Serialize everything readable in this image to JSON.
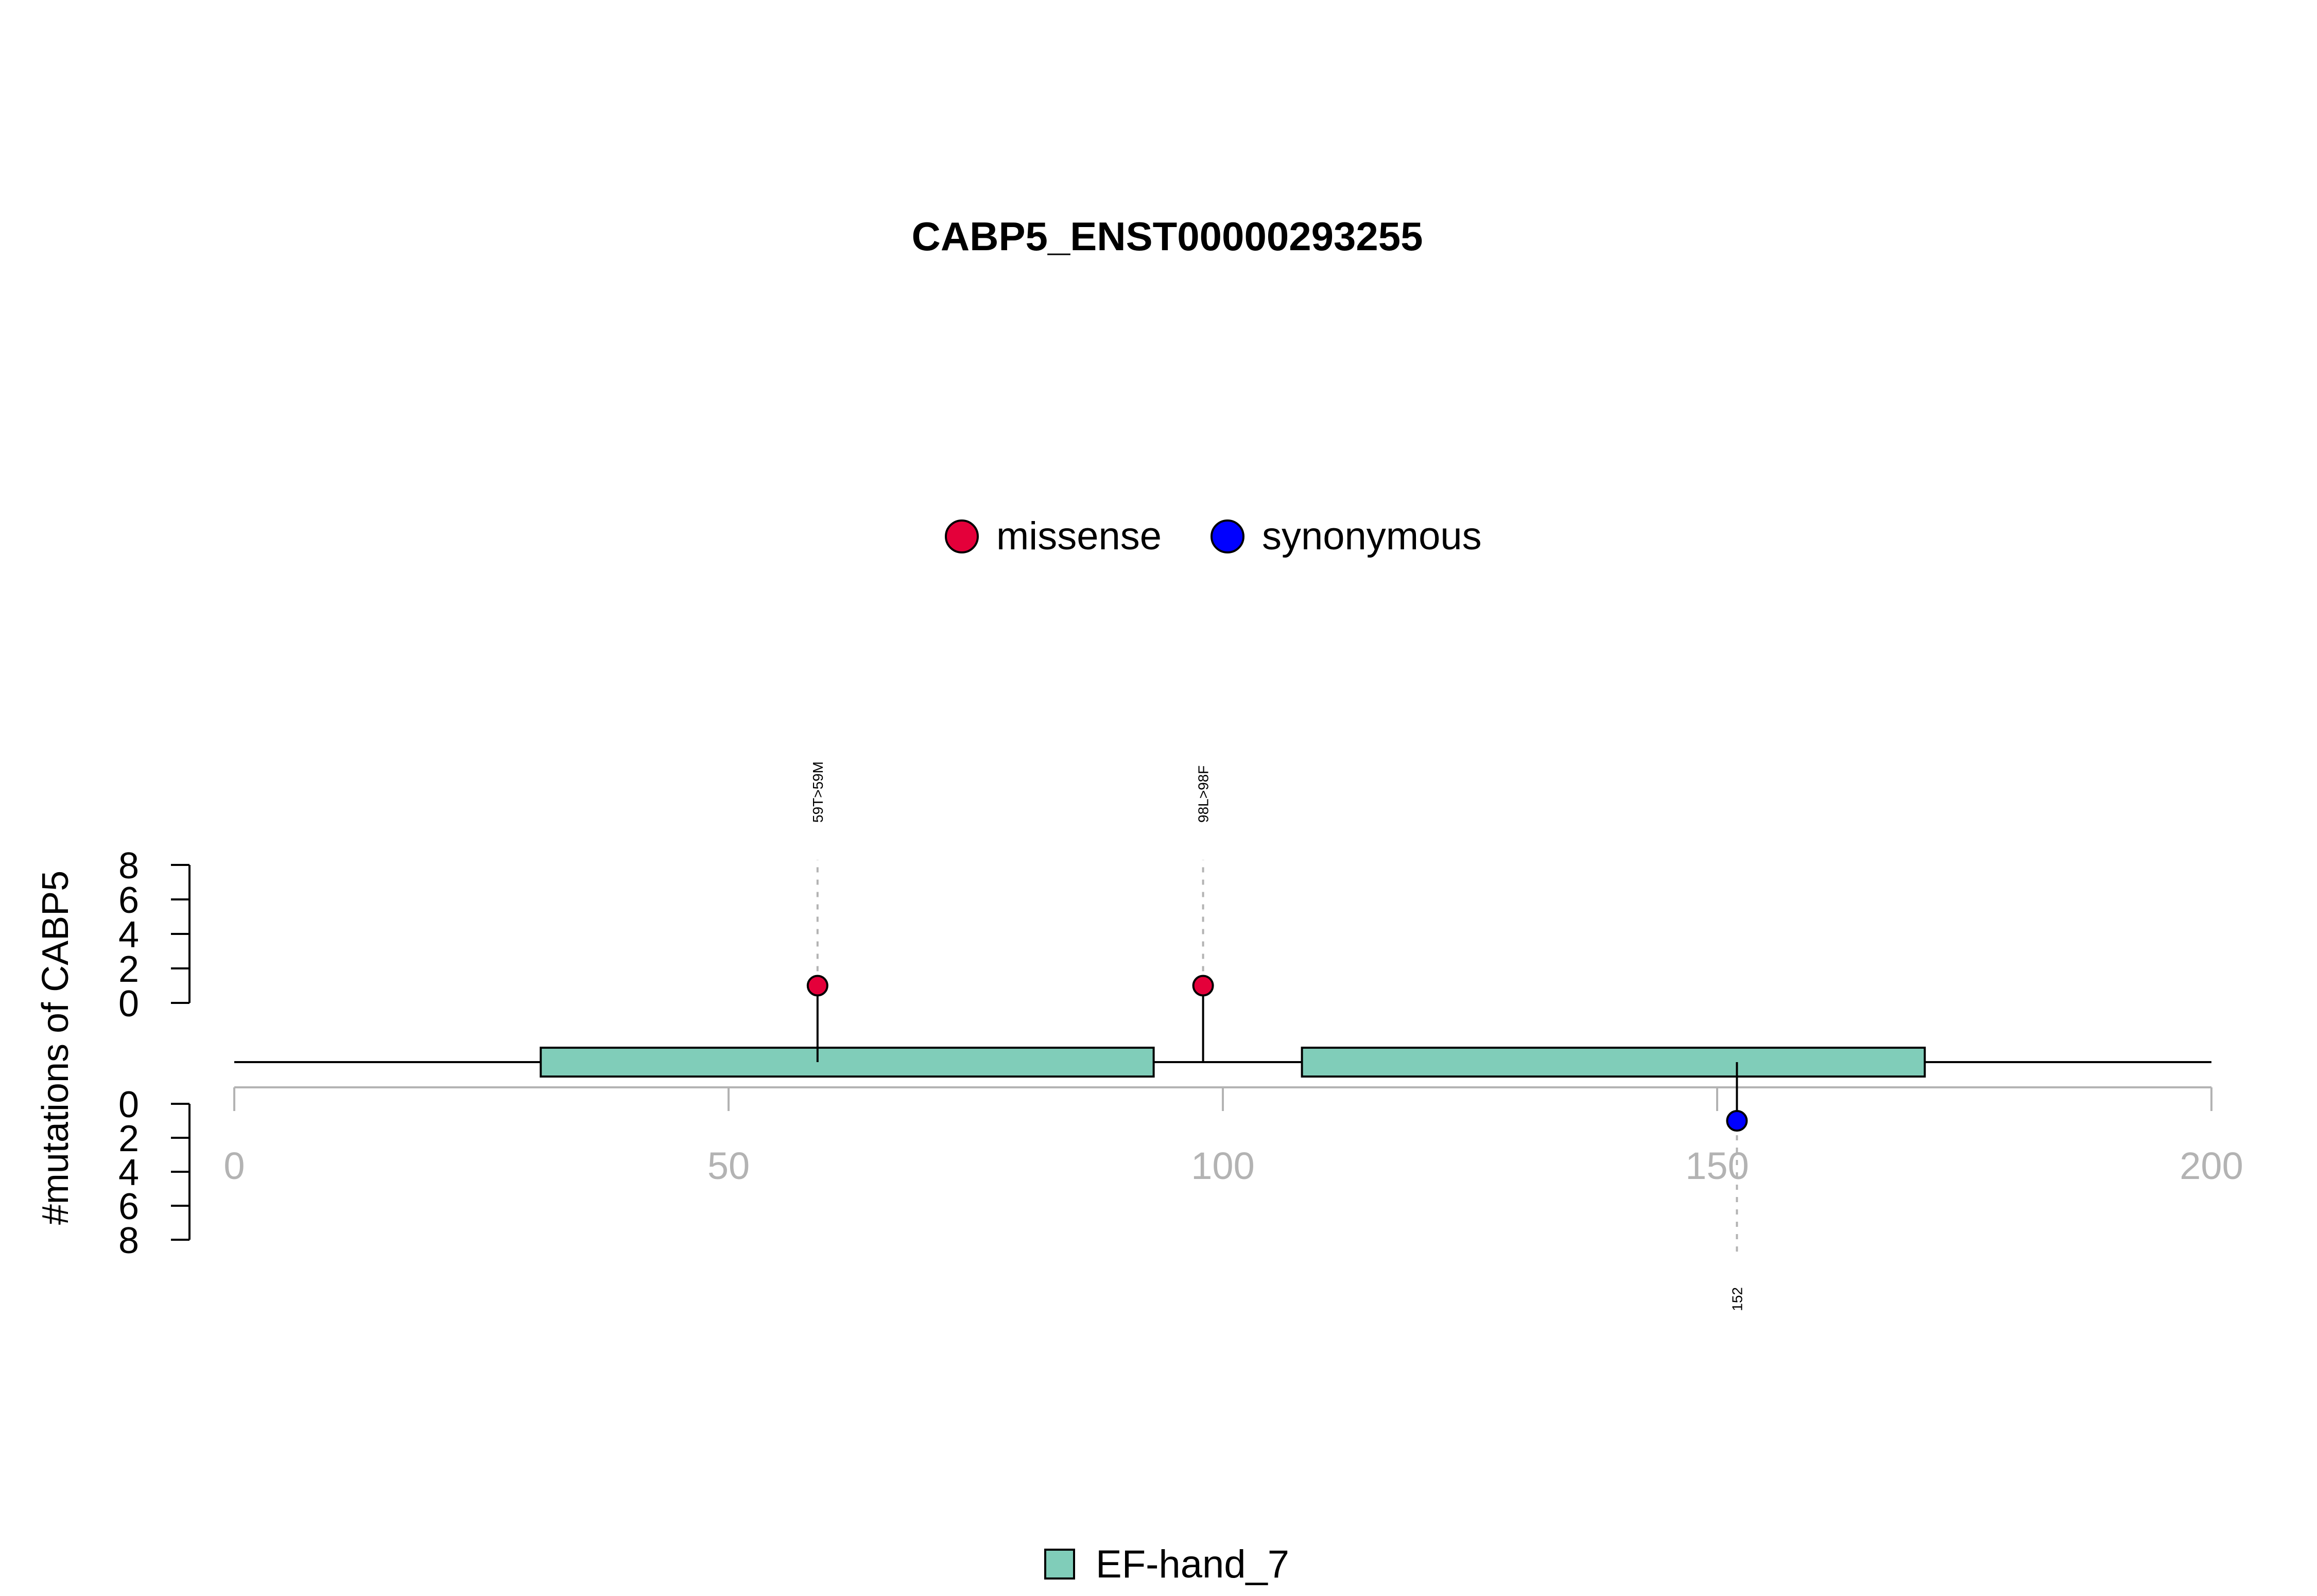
{
  "chart_data": {
    "type": "lollipop",
    "title": "CABP5_ENST00000293255",
    "ylabel": "#mutations of CABP5",
    "xlim": [
      0,
      200
    ],
    "x_ticks": [
      "0",
      "50",
      "100",
      "150",
      "200"
    ],
    "y_ticks": [
      "0",
      "2",
      "4",
      "6",
      "8"
    ],
    "ylim": [
      0,
      8
    ],
    "legend": {
      "position": "top-center",
      "entries": [
        {
          "name": "missense",
          "color": "#e4003a"
        },
        {
          "name": "synonymous",
          "color": "#0000ff"
        }
      ]
    },
    "domain_legend": {
      "position": "bottom-center",
      "entries": [
        {
          "name": "EF-hand_7",
          "color": "#80cdb9"
        }
      ]
    },
    "domains": [
      {
        "name": "EF-hand_7",
        "start": 31,
        "end": 93
      },
      {
        "name": "EF-hand_7",
        "start": 108,
        "end": 171
      }
    ],
    "mutations": [
      {
        "position": 59,
        "count": 1,
        "label": "59T>59M",
        "type": "missense",
        "side": "top",
        "color": "#e4003a"
      },
      {
        "position": 98,
        "count": 1,
        "label": "98L>98F",
        "type": "missense",
        "side": "top",
        "color": "#e4003a"
      },
      {
        "position": 152,
        "count": 1,
        "label": "152",
        "type": "synonymous",
        "side": "bottom",
        "color": "#0000ff"
      }
    ]
  }
}
